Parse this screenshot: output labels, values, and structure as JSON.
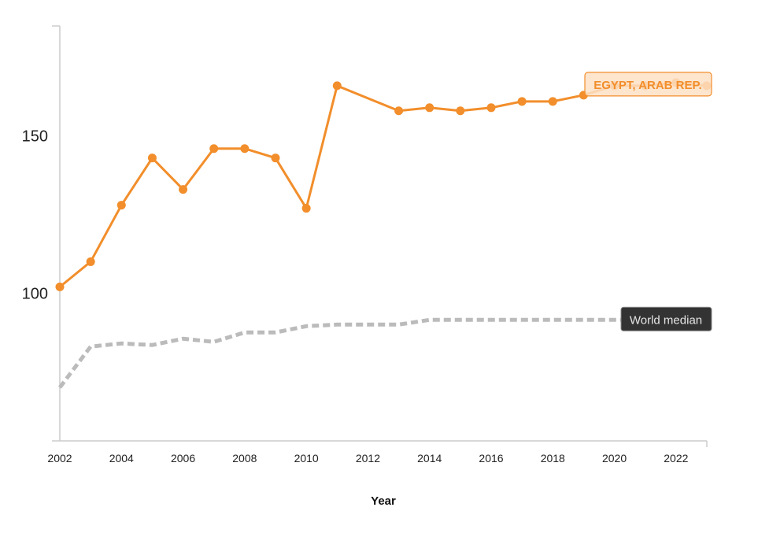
{
  "chart_data": {
    "type": "line",
    "title": "",
    "xlabel": "Year",
    "ylabel": "",
    "xlim": [
      2002,
      2023
    ],
    "ylim": [
      53,
      185
    ],
    "x_ticks": [
      2002,
      2004,
      2006,
      2008,
      2010,
      2012,
      2014,
      2016,
      2018,
      2020,
      2022
    ],
    "y_ticks": [
      100,
      150
    ],
    "grid": false,
    "colors": {
      "primary": "#f28e2b",
      "median": "#bbbbbb",
      "label_bg": "#fde0c5",
      "median_label_bg": "#333333"
    },
    "series": [
      {
        "name": "EGYPT, ARAB REP.",
        "style": "solid-markers",
        "x": [
          2002,
          2003,
          2004,
          2005,
          2006,
          2007,
          2008,
          2009,
          2010,
          2011,
          2013,
          2014,
          2015,
          2016,
          2017,
          2018,
          2019,
          2020,
          2021,
          2022,
          2023
        ],
        "y": [
          102,
          110,
          128,
          143,
          133,
          146,
          146,
          143,
          127,
          166,
          158,
          159,
          158,
          159,
          161,
          161,
          163,
          166,
          166,
          167,
          166
        ]
      },
      {
        "name": "World median",
        "style": "dashed",
        "x": [
          2002,
          2003,
          2004,
          2005,
          2006,
          2007,
          2008,
          2009,
          2010,
          2011,
          2012,
          2013,
          2014,
          2015,
          2016,
          2017,
          2018,
          2019,
          2020,
          2021,
          2022
        ],
        "y": [
          70,
          83,
          84,
          83.5,
          85.5,
          84.5,
          87.5,
          87.5,
          89.5,
          90,
          90,
          90,
          91.5,
          91.5,
          91.5,
          91.5,
          91.5,
          91.5,
          91.5,
          91.5,
          91.5
        ]
      }
    ]
  }
}
